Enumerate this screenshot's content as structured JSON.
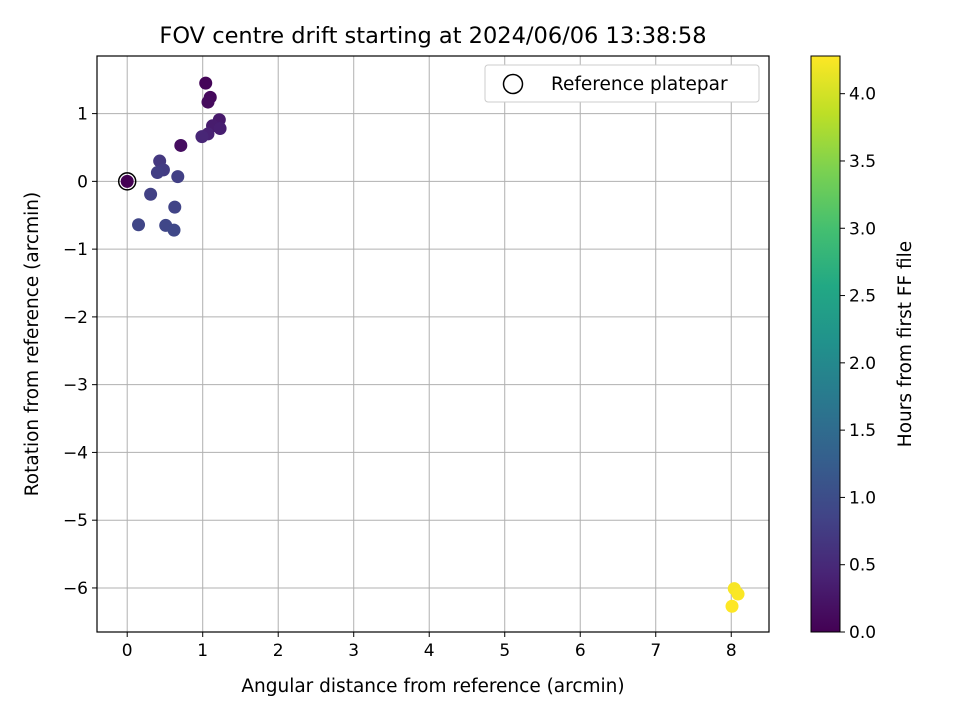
{
  "chart_data": {
    "type": "scatter",
    "title": "FOV centre drift starting at 2024/06/06 13:38:58",
    "xlabel": "Angular distance from reference (arcmin)",
    "ylabel": "Rotation from reference (arcmin)",
    "xlim": [
      -0.4,
      8.5
    ],
    "ylim": [
      -6.65,
      1.85
    ],
    "x_ticks": [
      0,
      1,
      2,
      3,
      4,
      5,
      6,
      7,
      8
    ],
    "y_ticks": [
      1,
      0,
      -1,
      -2,
      -3,
      -4,
      -5,
      -6
    ],
    "x_tick_labels": [
      "0",
      "1",
      "2",
      "3",
      "4",
      "5",
      "6",
      "7",
      "8"
    ],
    "y_tick_labels": [
      "1",
      "0",
      "−1",
      "−2",
      "−3",
      "−4",
      "−5",
      "−6"
    ],
    "grid": true,
    "legend": {
      "position": "top-right",
      "entries": [
        "Reference platepar"
      ]
    },
    "colorbar": {
      "label": "Hours from first FF file",
      "range": [
        0.0,
        4.28
      ],
      "ticks": [
        0.0,
        0.5,
        1.0,
        1.5,
        2.0,
        2.5,
        3.0,
        3.5,
        4.0
      ],
      "tick_labels": [
        "0.0",
        "0.5",
        "1.0",
        "1.5",
        "2.0",
        "2.5",
        "3.0",
        "3.5",
        "4.0"
      ],
      "colormap": "viridis"
    },
    "reference_point": {
      "x": 0.0,
      "y": 0.0
    },
    "points": [
      {
        "x": 0.0,
        "y": 0.0,
        "hours": 0.0
      },
      {
        "x": 1.04,
        "y": 1.45,
        "hours": 0.05
      },
      {
        "x": 1.1,
        "y": 1.24,
        "hours": 0.1
      },
      {
        "x": 1.07,
        "y": 1.17,
        "hours": 0.12
      },
      {
        "x": 0.71,
        "y": 0.53,
        "hours": 0.15
      },
      {
        "x": 1.22,
        "y": 0.91,
        "hours": 0.3
      },
      {
        "x": 1.13,
        "y": 0.82,
        "hours": 0.33
      },
      {
        "x": 1.23,
        "y": 0.78,
        "hours": 0.36
      },
      {
        "x": 1.07,
        "y": 0.7,
        "hours": 0.4
      },
      {
        "x": 0.99,
        "y": 0.66,
        "hours": 0.45
      },
      {
        "x": 0.43,
        "y": 0.3,
        "hours": 0.7
      },
      {
        "x": 0.48,
        "y": 0.17,
        "hours": 0.75
      },
      {
        "x": 0.4,
        "y": 0.13,
        "hours": 0.78
      },
      {
        "x": 0.67,
        "y": 0.07,
        "hours": 0.8
      },
      {
        "x": 0.31,
        "y": -0.19,
        "hours": 0.82
      },
      {
        "x": 0.63,
        "y": -0.38,
        "hours": 0.85
      },
      {
        "x": 0.15,
        "y": -0.64,
        "hours": 0.88
      },
      {
        "x": 0.51,
        "y": -0.65,
        "hours": 0.9
      },
      {
        "x": 0.62,
        "y": -0.72,
        "hours": 0.92
      },
      {
        "x": 8.04,
        "y": -6.01,
        "hours": 4.24
      },
      {
        "x": 8.09,
        "y": -6.09,
        "hours": 4.26
      },
      {
        "x": 8.01,
        "y": -6.27,
        "hours": 4.28
      }
    ]
  }
}
